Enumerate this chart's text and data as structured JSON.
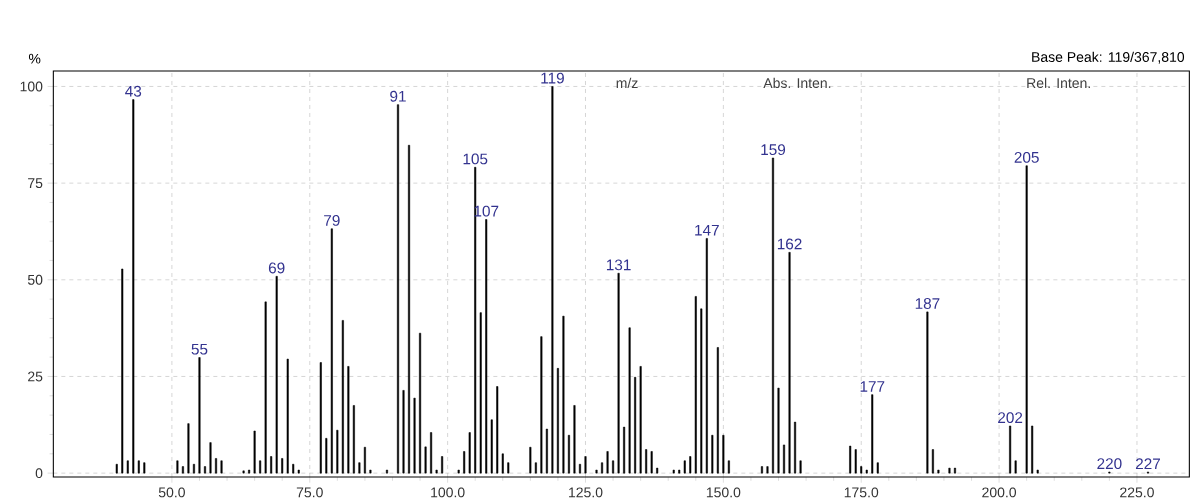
{
  "chart_data": {
    "type": "bar",
    "ylabel": "%",
    "x": [
      40,
      41,
      42,
      43,
      44,
      45,
      51,
      52,
      53,
      54,
      55,
      56,
      57,
      58,
      59,
      63,
      64,
      65,
      66,
      67,
      68,
      69,
      70,
      71,
      72,
      73,
      77,
      78,
      79,
      80,
      81,
      82,
      83,
      84,
      85,
      86,
      89,
      91,
      92,
      93,
      94,
      95,
      96,
      97,
      98,
      99,
      102,
      103,
      104,
      105,
      106,
      107,
      108,
      109,
      110,
      111,
      115,
      116,
      117,
      118,
      119,
      120,
      121,
      122,
      123,
      124,
      125,
      127,
      128,
      129,
      130,
      131,
      132,
      133,
      134,
      135,
      136,
      137,
      138,
      141,
      142,
      143,
      144,
      145,
      146,
      147,
      148,
      149,
      150,
      151,
      157,
      158,
      159,
      160,
      161,
      162,
      163,
      164,
      173,
      174,
      175,
      176,
      177,
      178,
      187,
      188,
      189,
      191,
      192,
      202,
      203,
      205,
      206,
      207,
      220,
      227
    ],
    "values": [
      2.3,
      52.8,
      3.2,
      96.6,
      3.2,
      2.7,
      3.2,
      1.7,
      12.8,
      2.3,
      29.9,
      1.7,
      7.9,
      3.8,
      3.2,
      0.6,
      0.8,
      10.9,
      3.2,
      44.3,
      4.3,
      50.9,
      3.8,
      29.5,
      2.3,
      0.8,
      28.6,
      9.0,
      63.2,
      11.1,
      39.5,
      27.6,
      17.5,
      2.7,
      6.7,
      0.8,
      0.8,
      95.3,
      21.4,
      84.8,
      19.4,
      36.2,
      6.8,
      10.5,
      0.8,
      4.3,
      0.8,
      5.6,
      10.5,
      79.1,
      41.5,
      65.6,
      13.8,
      22.4,
      5.0,
      2.7,
      6.7,
      2.7,
      35.3,
      11.4,
      100,
      27.1,
      40.6,
      9.8,
      17.5,
      2.3,
      4.3,
      0.8,
      2.7,
      5.6,
      3.2,
      51.7,
      11.9,
      37.6,
      24.8,
      27.6,
      6.1,
      5.6,
      1.3,
      0.8,
      0.8,
      3.2,
      4.3,
      45.7,
      42.5,
      60.7,
      9.8,
      32.5,
      9.8,
      3.2,
      1.7,
      1.7,
      81.5,
      22.0,
      7.3,
      57.1,
      13.2,
      3.2,
      7.0,
      6.1,
      1.7,
      0.8,
      20.3,
      2.7,
      41.7,
      6.1,
      0.8,
      1.3,
      1.3,
      12.2,
      3.2,
      79.5,
      12.2,
      0.8,
      0.3,
      0.3
    ],
    "color": "#000000",
    "xlim": [
      28.5,
      234.5
    ],
    "ylim": [
      -1,
      104
    ],
    "xticks": [
      {
        "value": 50,
        "label": "50.0"
      },
      {
        "value": 75,
        "label": "75.0"
      },
      {
        "value": 100,
        "label": "100.0"
      },
      {
        "value": 125,
        "label": "125.0"
      },
      {
        "value": 150,
        "label": "150.0"
      },
      {
        "value": 175,
        "label": "175.0"
      },
      {
        "value": 200,
        "label": "200.0"
      },
      {
        "value": 225,
        "label": "225.0"
      }
    ],
    "yticks": [
      0,
      25,
      50,
      75,
      100
    ],
    "grid": true,
    "annotations": [
      "Base Peak: 119/367,810",
      "m/z",
      "Abs. Inten.",
      "Rel. Inten.",
      {
        "text": "43",
        "x": 43,
        "y": 96.6
      },
      {
        "text": "55",
        "x": 55,
        "y": 29.9
      },
      {
        "text": "69",
        "x": 69,
        "y": 50.9
      },
      {
        "text": "79",
        "x": 79,
        "y": 63.2
      },
      {
        "text": "91",
        "x": 91,
        "y": 95.3
      },
      {
        "text": "105",
        "x": 105,
        "y": 79.1
      },
      {
        "text": "107",
        "x": 107,
        "y": 65.6
      },
      {
        "text": "119",
        "x": 119,
        "y": 100
      },
      {
        "text": "131",
        "x": 131,
        "y": 51.7
      },
      {
        "text": "147",
        "x": 147,
        "y": 60.7
      },
      {
        "text": "159",
        "x": 159,
        "y": 81.5
      },
      {
        "text": "162",
        "x": 162,
        "y": 57.1
      },
      {
        "text": "177",
        "x": 177,
        "y": 20.3
      },
      {
        "text": "187",
        "x": 187,
        "y": 41.7
      },
      {
        "text": "202",
        "x": 202,
        "y": 12.2
      },
      {
        "text": "205",
        "x": 205,
        "y": 79.5
      },
      {
        "text": "220",
        "x": 220,
        "y": 0.3
      },
      {
        "text": "227",
        "x": 227,
        "y": 0.3
      }
    ]
  }
}
